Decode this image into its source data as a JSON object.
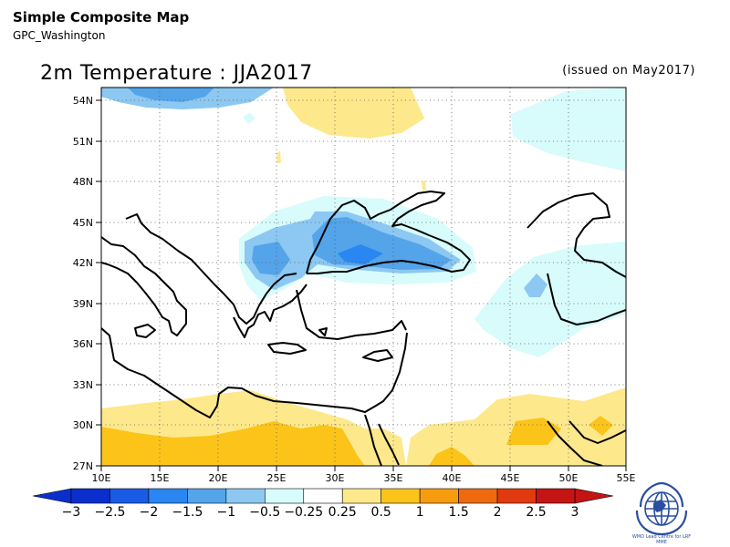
{
  "header": {
    "title": "Simple Composite Map",
    "subtitle": "GPC_Washington"
  },
  "map": {
    "title": "2m Temperature : JJA2017",
    "issued": "(issued on May2017)",
    "lon_labels": [
      "10E",
      "15E",
      "20E",
      "25E",
      "30E",
      "35E",
      "40E",
      "45E",
      "50E",
      "55E"
    ],
    "lat_labels": [
      "54N",
      "51N",
      "48N",
      "45N",
      "42N",
      "39N",
      "36N",
      "33N",
      "30N",
      "27N"
    ],
    "lon_range": [
      10,
      55
    ],
    "lat_range": [
      27,
      55
    ],
    "grid": "dotted"
  },
  "colorbar": {
    "labels": [
      "−3",
      "−2.5",
      "−2",
      "−1.5",
      "−1",
      "−0.5",
      "−0.25",
      "0.25",
      "0.5",
      "1",
      "1.5",
      "2",
      "2.5",
      "3"
    ],
    "colors": [
      "#0b2fcc",
      "#1a5be6",
      "#2a86f0",
      "#54a4ea",
      "#8cc8f2",
      "#d8fbfb",
      "#ffffff",
      "#fde98c",
      "#fcc419",
      "#f79c0e",
      "#ef6a0e",
      "#e23a0f",
      "#c41414"
    ]
  },
  "logo": {
    "icon": "wmo-globe-icon",
    "text": "WMO Lead Centre for LRF MME"
  }
}
